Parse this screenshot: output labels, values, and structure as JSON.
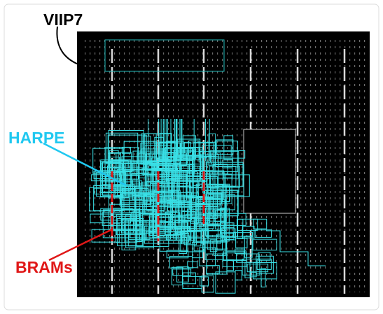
{
  "labels": {
    "top": "VIIP7",
    "middle": "HARPE",
    "bottom": "BRAMs"
  }
}
